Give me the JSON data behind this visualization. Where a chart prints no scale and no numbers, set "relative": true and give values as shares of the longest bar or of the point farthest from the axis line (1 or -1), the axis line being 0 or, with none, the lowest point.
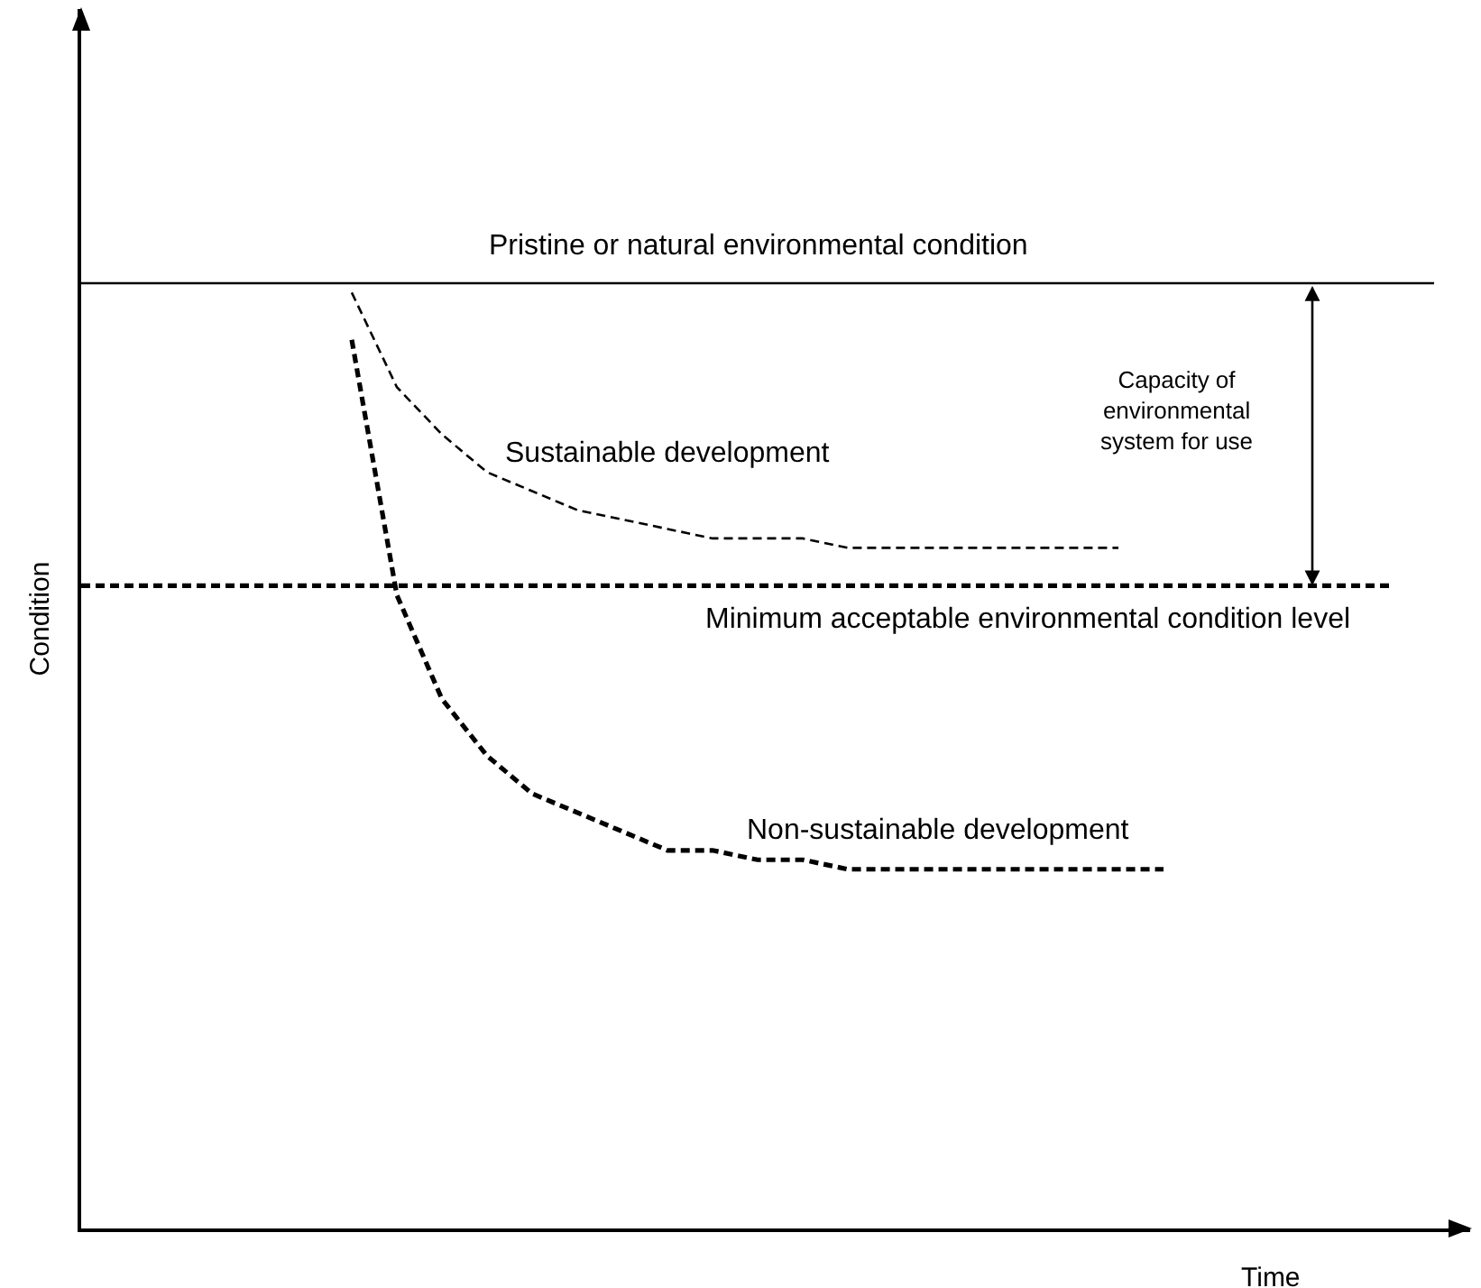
{
  "chart_data": {
    "type": "line",
    "relative": true,
    "xlabel": "Time",
    "ylabel": "Condition",
    "categories": [
      null,
      null,
      null,
      null,
      null,
      null,
      null,
      null,
      null,
      null,
      null,
      null,
      null,
      null,
      null,
      null,
      null,
      null,
      null,
      null,
      null,
      null,
      null,
      null,
      null,
      null,
      null,
      null,
      null,
      null,
      null
    ],
    "series": [
      {
        "name": "Pristine or natural environmental condition",
        "color": "#000000",
        "line_style": "solid",
        "values": [
          1,
          1,
          1,
          1,
          1,
          1,
          1,
          1,
          1,
          1,
          1,
          1,
          1,
          1,
          1,
          1,
          1,
          1,
          1,
          1,
          1,
          1,
          1,
          1,
          1,
          1,
          1,
          1,
          1,
          1,
          1
        ]
      },
      {
        "name": "Minimum acceptable environmental condition level",
        "color": "#000000",
        "line_style": "dashed",
        "values": [
          0.68,
          0.68,
          0.68,
          0.68,
          0.68,
          0.68,
          0.68,
          0.68,
          0.68,
          0.68,
          0.68,
          0.68,
          0.68,
          0.68,
          0.68,
          0.68,
          0.68,
          0.68,
          0.68,
          0.68,
          0.68,
          0.68,
          0.68,
          0.68,
          0.68,
          0.68,
          0.68,
          0.68,
          0.68,
          0.68,
          null
        ]
      },
      {
        "name": "Sustainable development",
        "color": "#000000",
        "line_style": "dashed",
        "values": [
          null,
          null,
          null,
          null,
          null,
          null,
          0.99,
          0.89,
          0.84,
          0.8,
          0.78,
          0.76,
          0.75,
          0.74,
          0.73,
          0.73,
          0.73,
          0.72,
          0.72,
          0.72,
          0.72,
          0.72,
          0.72,
          0.72,
          null,
          null,
          null,
          null,
          null,
          null,
          null
        ]
      },
      {
        "name": "Non-sustainable development",
        "color": "#000000",
        "line_style": "dashed",
        "values": [
          null,
          null,
          null,
          null,
          null,
          null,
          0.94,
          0.67,
          0.56,
          0.5,
          0.46,
          0.44,
          0.42,
          0.4,
          0.4,
          0.39,
          0.39,
          0.38,
          0.38,
          0.38,
          0.38,
          0.38,
          0.38,
          0.38,
          0.38,
          null,
          null,
          null,
          null,
          null,
          null
        ]
      }
    ],
    "annotations": [
      "Capacity of\nenvironmental\nsystem for use"
    ]
  }
}
